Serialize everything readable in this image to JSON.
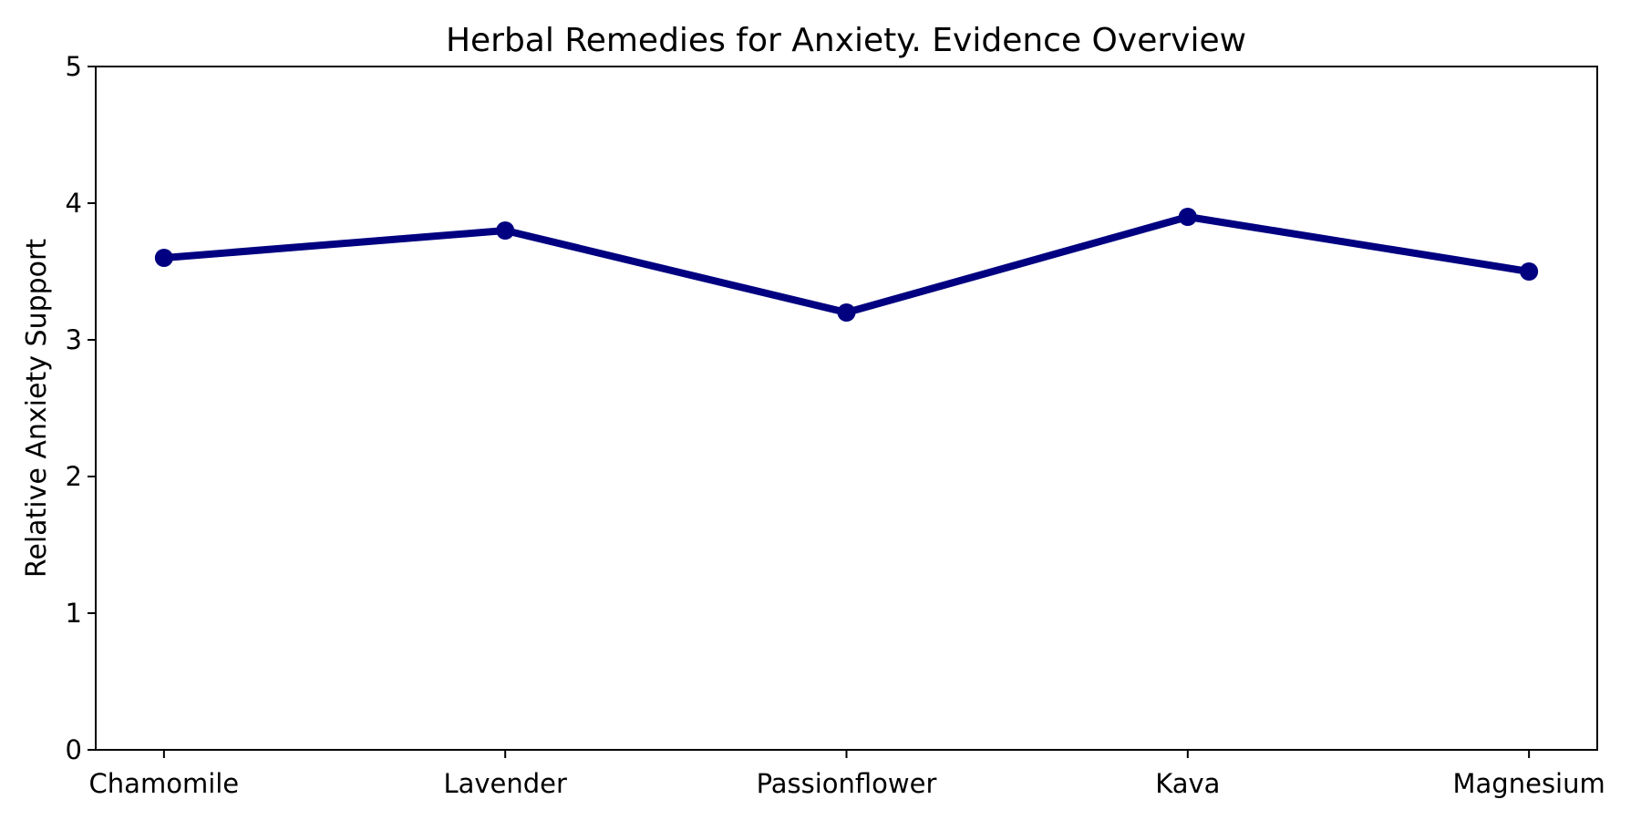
{
  "chart_data": {
    "type": "line",
    "title": "Herbal Remedies for Anxiety. Evidence Overview",
    "xlabel": "",
    "ylabel": "Relative Anxiety Support",
    "categories": [
      "Chamomile",
      "Lavender",
      "Passionflower",
      "Kava",
      "Magnesium"
    ],
    "values": [
      3.6,
      3.8,
      3.2,
      3.9,
      3.5
    ],
    "ylim": [
      0,
      5
    ],
    "yticks": [
      0,
      1,
      2,
      3,
      4,
      5
    ],
    "grid": false,
    "legend": null,
    "line_color": "#000080",
    "marker": "circle",
    "axis_color": "#000000",
    "background_color": "#ffffff"
  }
}
